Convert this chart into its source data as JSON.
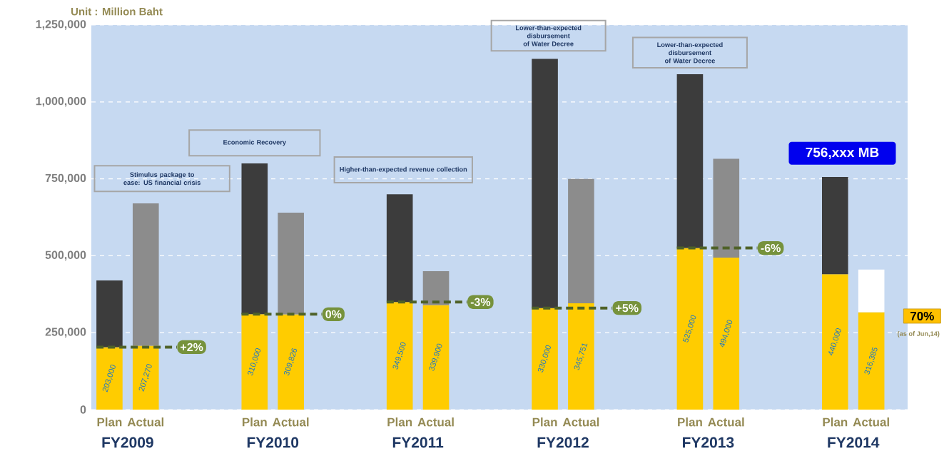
{
  "chart_data": {
    "type": "bar",
    "stacked": true,
    "ylabel": "Unit : Million Baht",
    "categories": [
      "Plan",
      "Actual",
      "Plan",
      "Actual",
      "Plan",
      "Actual",
      "Plan",
      "Actual",
      "Plan",
      "Actual",
      "Plan",
      "Actual"
    ],
    "series": [
      {
        "color": "#ffcc00",
        "values": [
          203000,
          207270,
          310000,
          309826,
          349500,
          339900,
          330000,
          345751,
          525000,
          494000,
          440000,
          316385
        ],
        "value_labels": [
          "203,000",
          "207,270",
          "310,000",
          "309,826",
          "349,500",
          "339,900",
          "330,000",
          "345,751",
          "525,000",
          "494,000",
          "440,000",
          "316,385"
        ]
      },
      {
        "colors": [
          "#3c3c3c",
          "#8c8c8c",
          "#3c3c3c",
          "#8c8c8c",
          "#3c3c3c",
          "#8c8c8c",
          "#3c3c3c",
          "#8c8c8c",
          "#3c3c3c",
          "#8c8c8c",
          "#3c3c3c",
          "#ffffff"
        ],
        "values": [
          217000,
          463000,
          490000,
          330000,
          350000,
          110000,
          810000,
          404000,
          565000,
          321000,
          316000,
          139000
        ]
      }
    ],
    "ylim": [
      0,
      1250000
    ],
    "yticks": [
      {
        "value": 0,
        "label": "0"
      },
      {
        "value": 250000,
        "label": "250,000"
      },
      {
        "value": 500000,
        "label": "500,000"
      },
      {
        "value": 750000,
        "label": "750,000"
      },
      {
        "value": 1000000,
        "label": "1,000,000"
      },
      {
        "value": 1250000,
        "label": "1,250,000"
      }
    ],
    "grid": "y",
    "ref_lines": [
      {
        "axis": "y",
        "value": 203000,
        "color": "#4f6228",
        "line_style": "dashed"
      },
      {
        "axis": "y",
        "value": 310000,
        "color": "#4f6228",
        "line_style": "dashed"
      },
      {
        "axis": "y",
        "value": 349500,
        "color": "#4f6228",
        "line_style": "dashed"
      },
      {
        "axis": "y",
        "value": 330000,
        "color": "#4f6228",
        "line_style": "dashed"
      },
      {
        "axis": "y",
        "value": 525000,
        "color": "#4f6228",
        "line_style": "dashed"
      }
    ],
    "annotations": [
      "Stimulus package to ease: US financial crisis",
      "Economic Recovery",
      "Higher-than-expected revenue collection",
      "Lower-than-expected disbursement of Water Decree",
      "Lower-than-expected disbursement of Water Decree",
      "756,xxx MB",
      "70%",
      "(as of Jun,14)",
      "+2%",
      "0%",
      "-3%",
      "+5%",
      "-6%",
      "FY2009",
      "FY2010",
      "FY2011",
      "FY2012",
      "FY2013",
      "FY2014"
    ]
  }
}
